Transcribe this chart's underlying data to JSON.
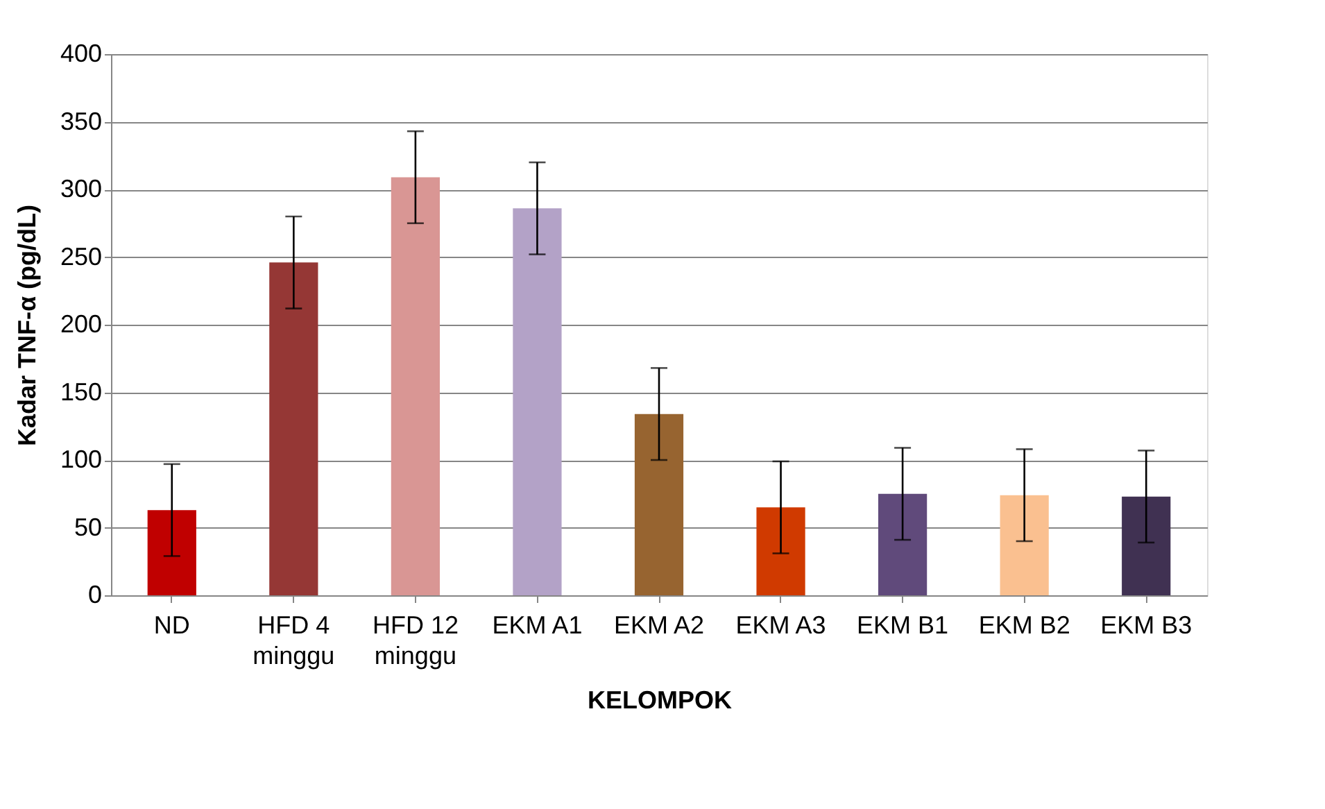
{
  "chart_data": {
    "type": "bar",
    "xlabel": "KELOMPOK",
    "ylabel": "Kadar TNF-α (pg/dL)",
    "categories": [
      "ND",
      "HFD 4 minggu",
      "HFD 12 minggu",
      "EKM A1",
      "EKM A2",
      "EKM A3",
      "EKM B1",
      "EKM B2",
      "EKM B3"
    ],
    "values": [
      63,
      246,
      309,
      286,
      134,
      65,
      75,
      74,
      73
    ],
    "errors": [
      34,
      34,
      34,
      34,
      34,
      34,
      34,
      34,
      34
    ],
    "colors": [
      "#c00000",
      "#953735",
      "#d99694",
      "#b3a2c7",
      "#976430",
      "#d03a00",
      "#604a7b",
      "#fac090",
      "#403152"
    ],
    "ylim": [
      0,
      400
    ],
    "yticks": [
      0,
      50,
      100,
      150,
      200,
      250,
      300,
      350,
      400
    ],
    "grid": "y",
    "legend": false
  }
}
